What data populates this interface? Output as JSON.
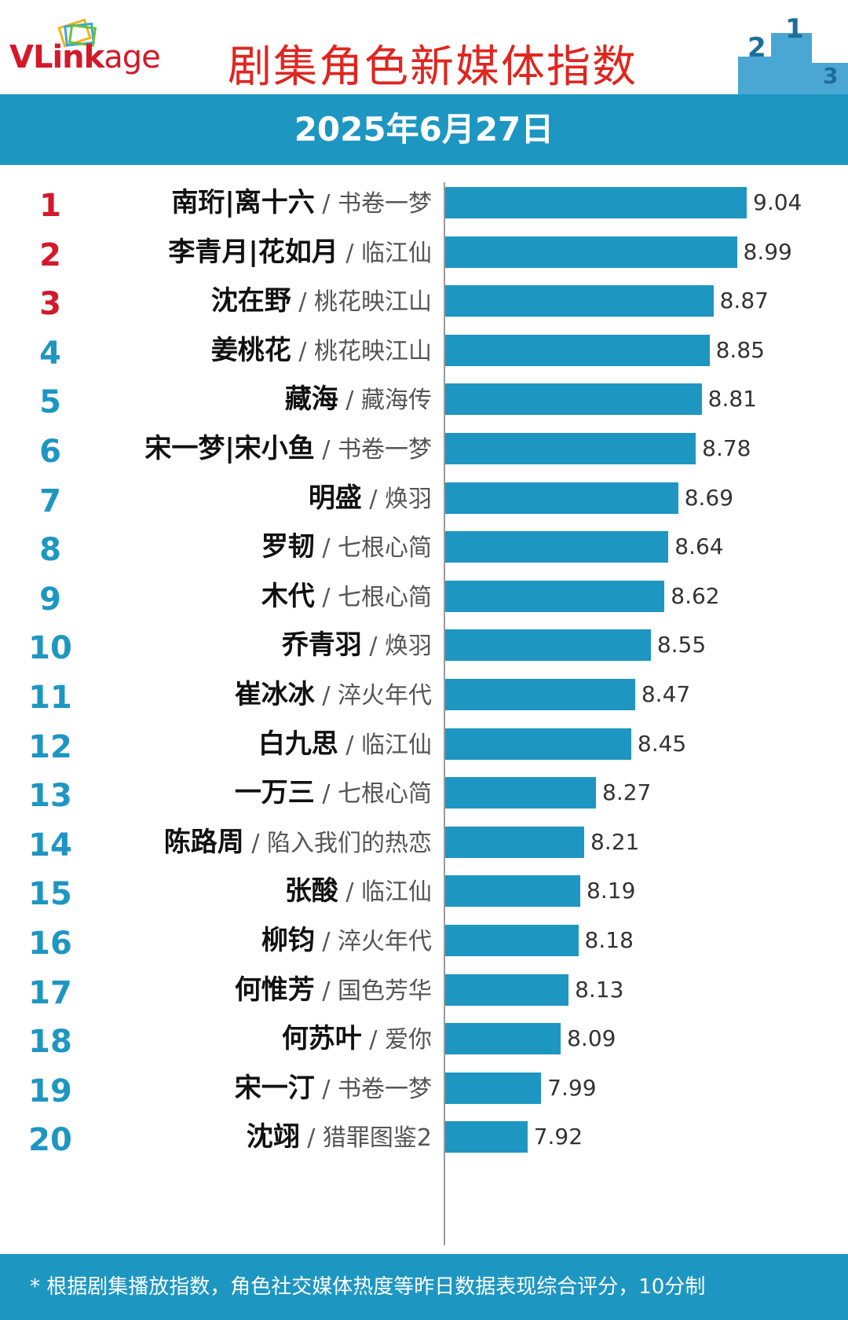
{
  "header": {
    "logo_text": "VLinkage",
    "title": "剧集角色新媒体指数"
  },
  "date": "2025年6月27日",
  "chart_data": {
    "type": "bar",
    "orientation": "horizontal",
    "title": "剧集角色新媒体指数",
    "subtitle": "2025年6月27日",
    "xlim": [
      0,
      9.04
    ],
    "bar_color": "#1e96c2",
    "rank_colors": {
      "top3": "#d3192a",
      "rest": "#1e96c2"
    },
    "rows": [
      {
        "rank": "1",
        "role": "南珩|离十六",
        "drama": "书卷一梦",
        "value": 9.04,
        "value_label": "9.04"
      },
      {
        "rank": "2",
        "role": "李青月|花如月",
        "drama": "临江仙",
        "value": 8.99,
        "value_label": "8.99"
      },
      {
        "rank": "3",
        "role": "沈在野",
        "drama": "桃花映江山",
        "value": 8.87,
        "value_label": "8.87"
      },
      {
        "rank": "4",
        "role": "姜桃花",
        "drama": "桃花映江山",
        "value": 8.85,
        "value_label": "8.85"
      },
      {
        "rank": "5",
        "role": "藏海",
        "drama": "藏海传",
        "value": 8.81,
        "value_label": "8.81"
      },
      {
        "rank": "6",
        "role": "宋一梦|宋小鱼",
        "drama": "书卷一梦",
        "value": 8.78,
        "value_label": "8.78"
      },
      {
        "rank": "7",
        "role": "明盛",
        "drama": "焕羽",
        "value": 8.69,
        "value_label": "8.69"
      },
      {
        "rank": "8",
        "role": "罗韧",
        "drama": "七根心简",
        "value": 8.64,
        "value_label": "8.64"
      },
      {
        "rank": "9",
        "role": "木代",
        "drama": "七根心简",
        "value": 8.62,
        "value_label": "8.62"
      },
      {
        "rank": "10",
        "role": "乔青羽",
        "drama": "焕羽",
        "value": 8.55,
        "value_label": "8.55"
      },
      {
        "rank": "11",
        "role": "崔冰冰",
        "drama": "淬火年代",
        "value": 8.47,
        "value_label": "8.47"
      },
      {
        "rank": "12",
        "role": "白九思",
        "drama": "临江仙",
        "value": 8.45,
        "value_label": "8.45"
      },
      {
        "rank": "13",
        "role": "一万三",
        "drama": "七根心简",
        "value": 8.27,
        "value_label": "8.27"
      },
      {
        "rank": "14",
        "role": "陈路周",
        "drama": "陷入我们的热恋",
        "value": 8.21,
        "value_label": "8.21"
      },
      {
        "rank": "15",
        "role": "张酸",
        "drama": "临江仙",
        "value": 8.19,
        "value_label": "8.19"
      },
      {
        "rank": "16",
        "role": "柳钧",
        "drama": "淬火年代",
        "value": 8.18,
        "value_label": "8.18"
      },
      {
        "rank": "17",
        "role": "何惟芳",
        "drama": "国色芳华",
        "value": 8.13,
        "value_label": "8.13"
      },
      {
        "rank": "18",
        "role": "何苏叶",
        "drama": "爱你",
        "value": 8.09,
        "value_label": "8.09"
      },
      {
        "rank": "19",
        "role": "宋一汀",
        "drama": "书卷一梦",
        "value": 7.99,
        "value_label": "7.99"
      },
      {
        "rank": "20",
        "role": "沈翊",
        "drama": "猎罪图鉴2",
        "value": 7.92,
        "value_label": "7.92"
      }
    ]
  },
  "footer": {
    "note": "* 根据剧集播放指数，角色社交媒体热度等昨日数据表现综合评分，10分制"
  }
}
